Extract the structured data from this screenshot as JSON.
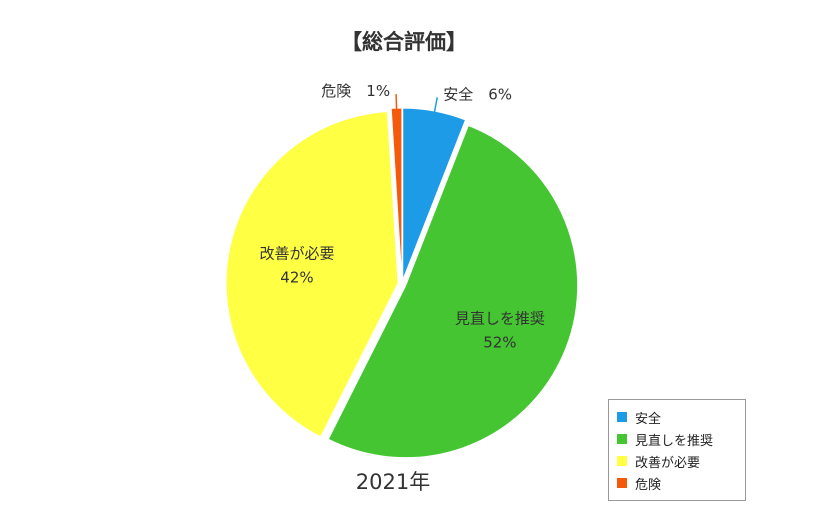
{
  "chart_data": {
    "type": "pie",
    "title": "【総合評価】",
    "subtitle": "2021年",
    "legend_position": "bottom-right",
    "slices": [
      {
        "name": "安全",
        "value": 6,
        "label": "6%",
        "color": "#1e9be6"
      },
      {
        "name": "見直しを推奨",
        "value": 52,
        "label": "52%",
        "color": "#44c531"
      },
      {
        "name": "改善が必要",
        "value": 42,
        "label": "42%",
        "color": "#ffff44"
      },
      {
        "name": "危険",
        "value": 1,
        "label": "1%",
        "color": "#f55a0a"
      }
    ]
  }
}
